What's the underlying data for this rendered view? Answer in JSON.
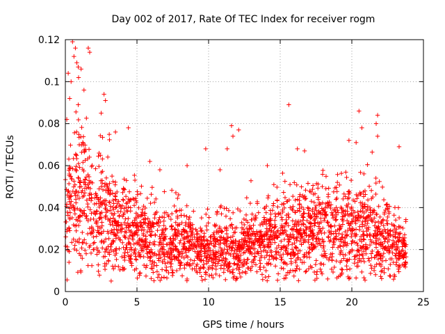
{
  "chart_data": {
    "type": "scatter",
    "title": "Day 002 of 2017, Rate Of TEC Index for receiver rogm",
    "xlabel": "GPS time / hours",
    "ylabel": "ROTI / TECUs",
    "xlim": [
      0,
      25
    ],
    "ylim": [
      0,
      0.12
    ],
    "x_ticks": [
      0,
      5,
      10,
      15,
      20,
      25
    ],
    "x_tick_labels": [
      "0",
      "5",
      "10",
      "15",
      "20",
      "25"
    ],
    "y_ticks": [
      0,
      0.02,
      0.04,
      0.06,
      0.08,
      0.1,
      0.12
    ],
    "y_tick_labels": [
      "0",
      "0.02",
      "0.04",
      "0.06",
      "0.08",
      "0.1",
      "0.12"
    ],
    "grid": true,
    "marker": "+",
    "series_color": "#ff0000",
    "series": [
      {
        "name": "ROTI",
        "x_range": [
          0,
          23.8
        ],
        "trend": [
          {
            "x": 0.0,
            "y": 0.04
          },
          {
            "x": 0.5,
            "y": 0.045
          },
          {
            "x": 1.0,
            "y": 0.044
          },
          {
            "x": 1.5,
            "y": 0.042
          },
          {
            "x": 2.0,
            "y": 0.04
          },
          {
            "x": 3.0,
            "y": 0.035
          },
          {
            "x": 4.0,
            "y": 0.03
          },
          {
            "x": 5.0,
            "y": 0.028
          },
          {
            "x": 6.0,
            "y": 0.026
          },
          {
            "x": 7.0,
            "y": 0.023
          },
          {
            "x": 8.0,
            "y": 0.023
          },
          {
            "x": 9.0,
            "y": 0.022
          },
          {
            "x": 10.0,
            "y": 0.019
          },
          {
            "x": 11.0,
            "y": 0.022
          },
          {
            "x": 12.0,
            "y": 0.02
          },
          {
            "x": 13.0,
            "y": 0.022
          },
          {
            "x": 14.0,
            "y": 0.026
          },
          {
            "x": 15.0,
            "y": 0.026
          },
          {
            "x": 16.0,
            "y": 0.028
          },
          {
            "x": 17.0,
            "y": 0.029
          },
          {
            "x": 18.0,
            "y": 0.03
          },
          {
            "x": 19.0,
            "y": 0.03
          },
          {
            "x": 20.0,
            "y": 0.031
          },
          {
            "x": 21.0,
            "y": 0.03
          },
          {
            "x": 22.0,
            "y": 0.027
          },
          {
            "x": 23.0,
            "y": 0.022
          },
          {
            "x": 23.8,
            "y": 0.018
          }
        ],
        "outliers": [
          {
            "x": 0.5,
            "y": 0.119
          },
          {
            "x": 0.7,
            "y": 0.116
          },
          {
            "x": 0.6,
            "y": 0.112
          },
          {
            "x": 0.8,
            "y": 0.109
          },
          {
            "x": 0.9,
            "y": 0.107
          },
          {
            "x": 0.2,
            "y": 0.104
          },
          {
            "x": 1.6,
            "y": 0.116
          },
          {
            "x": 1.7,
            "y": 0.114
          },
          {
            "x": 1.1,
            "y": 0.106
          },
          {
            "x": 0.4,
            "y": 0.1
          },
          {
            "x": 1.3,
            "y": 0.096
          },
          {
            "x": 2.7,
            "y": 0.094
          },
          {
            "x": 2.8,
            "y": 0.091
          },
          {
            "x": 0.3,
            "y": 0.092
          },
          {
            "x": 0.9,
            "y": 0.089
          },
          {
            "x": 2.5,
            "y": 0.085
          },
          {
            "x": 0.1,
            "y": 0.082
          },
          {
            "x": 4.4,
            "y": 0.078
          },
          {
            "x": 3.5,
            "y": 0.076
          },
          {
            "x": 15.6,
            "y": 0.089
          },
          {
            "x": 20.5,
            "y": 0.086
          },
          {
            "x": 21.8,
            "y": 0.084
          },
          {
            "x": 21.7,
            "y": 0.08
          },
          {
            "x": 11.6,
            "y": 0.079
          },
          {
            "x": 12.1,
            "y": 0.077
          },
          {
            "x": 20.7,
            "y": 0.078
          },
          {
            "x": 11.7,
            "y": 0.074
          },
          {
            "x": 21.8,
            "y": 0.074
          },
          {
            "x": 9.8,
            "y": 0.068
          },
          {
            "x": 11.3,
            "y": 0.068
          },
          {
            "x": 16.2,
            "y": 0.068
          },
          {
            "x": 16.7,
            "y": 0.067
          },
          {
            "x": 19.8,
            "y": 0.072
          },
          {
            "x": 20.3,
            "y": 0.071
          },
          {
            "x": 23.3,
            "y": 0.069
          },
          {
            "x": 10.8,
            "y": 0.058
          },
          {
            "x": 8.5,
            "y": 0.06
          },
          {
            "x": 14.1,
            "y": 0.06
          },
          {
            "x": 5.9,
            "y": 0.062
          },
          {
            "x": 6.6,
            "y": 0.058
          }
        ]
      }
    ]
  }
}
